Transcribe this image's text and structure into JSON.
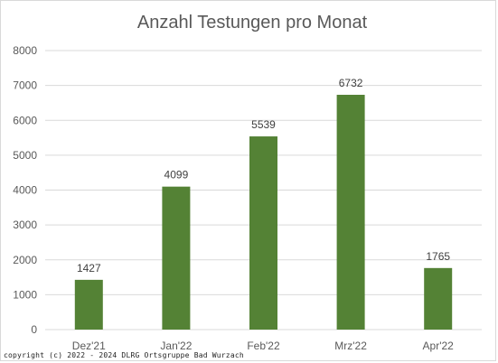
{
  "chart_data": {
    "type": "bar",
    "title": "Anzahl Testungen pro Monat",
    "categories": [
      "Dez'21",
      "Jan'22",
      "Feb'22",
      "Mrz'22",
      "Apr'22"
    ],
    "values": [
      1427,
      4099,
      5539,
      6732,
      1765
    ],
    "ylim": [
      0,
      8000
    ],
    "yticks": [
      0,
      1000,
      2000,
      3000,
      4000,
      5000,
      6000,
      7000,
      8000
    ],
    "grid": true,
    "bar_color": "#548235",
    "gridline_color": "#d9d9d9",
    "text_color": "#595959",
    "data_labels": true
  },
  "footer": {
    "copyright": "copyright (c) 2022 - 2024 DLRG Ortsgruppe Bad Wurzach"
  }
}
